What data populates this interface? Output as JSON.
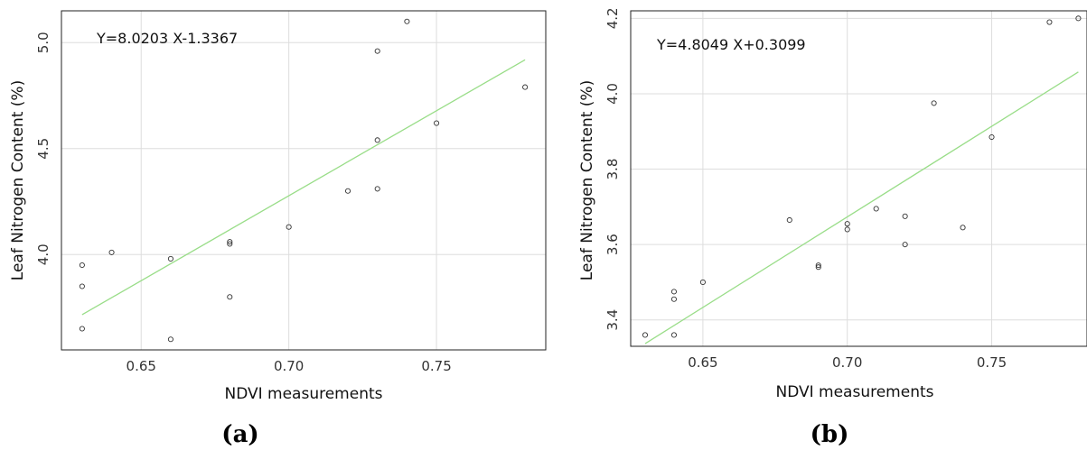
{
  "chart_data": [
    {
      "type": "scatter",
      "panel_label": "(a)",
      "equation": "Y=8.0203 X-1.3367",
      "xlabel": "NDVI measurements",
      "ylabel": "Leaf Nitrogen Content (%)",
      "xlim": [
        0.623,
        0.787
      ],
      "ylim": [
        3.55,
        5.15
      ],
      "xticks": [
        "0.65",
        "0.70",
        "0.75"
      ],
      "yticks": [
        "4.0",
        "4.5",
        "5.0"
      ],
      "grid": true,
      "points": [
        {
          "x": 0.63,
          "y": 3.95
        },
        {
          "x": 0.63,
          "y": 3.85
        },
        {
          "x": 0.63,
          "y": 3.65
        },
        {
          "x": 0.64,
          "y": 4.01
        },
        {
          "x": 0.66,
          "y": 3.98
        },
        {
          "x": 0.66,
          "y": 3.6
        },
        {
          "x": 0.68,
          "y": 4.06
        },
        {
          "x": 0.68,
          "y": 4.05
        },
        {
          "x": 0.68,
          "y": 3.8
        },
        {
          "x": 0.7,
          "y": 4.13
        },
        {
          "x": 0.72,
          "y": 4.3
        },
        {
          "x": 0.73,
          "y": 4.96
        },
        {
          "x": 0.73,
          "y": 4.54
        },
        {
          "x": 0.73,
          "y": 4.31
        },
        {
          "x": 0.74,
          "y": 5.1
        },
        {
          "x": 0.75,
          "y": 4.62
        },
        {
          "x": 0.78,
          "y": 4.79
        }
      ],
      "fit": {
        "slope": 8.0203,
        "intercept": -1.3367,
        "x_range": [
          0.63,
          0.78
        ],
        "color": "#99dd88"
      }
    },
    {
      "type": "scatter",
      "panel_label": "(b)",
      "equation": "Y=4.8049 X+0.3099",
      "xlabel": "NDVI measurements",
      "ylabel": "Leaf Nitrogen Content (%)",
      "xlim": [
        0.625,
        0.783
      ],
      "ylim": [
        3.33,
        4.22
      ],
      "xticks": [
        "0.65",
        "0.70",
        "0.75"
      ],
      "yticks": [
        "3.4",
        "3.6",
        "3.8",
        "4.0",
        "4.2"
      ],
      "grid": true,
      "points": [
        {
          "x": 0.63,
          "y": 3.36
        },
        {
          "x": 0.64,
          "y": 3.475
        },
        {
          "x": 0.64,
          "y": 3.455
        },
        {
          "x": 0.64,
          "y": 3.36
        },
        {
          "x": 0.65,
          "y": 3.5
        },
        {
          "x": 0.68,
          "y": 3.665
        },
        {
          "x": 0.69,
          "y": 3.545
        },
        {
          "x": 0.69,
          "y": 3.54
        },
        {
          "x": 0.7,
          "y": 3.655
        },
        {
          "x": 0.7,
          "y": 3.64
        },
        {
          "x": 0.71,
          "y": 3.695
        },
        {
          "x": 0.72,
          "y": 3.675
        },
        {
          "x": 0.72,
          "y": 3.6
        },
        {
          "x": 0.73,
          "y": 3.975
        },
        {
          "x": 0.74,
          "y": 3.645
        },
        {
          "x": 0.75,
          "y": 3.885
        },
        {
          "x": 0.77,
          "y": 4.19
        },
        {
          "x": 0.78,
          "y": 4.2
        }
      ],
      "fit": {
        "slope": 4.8049,
        "intercept": 0.3099,
        "x_range": [
          0.63,
          0.78
        ],
        "color": "#99dd88"
      }
    }
  ]
}
